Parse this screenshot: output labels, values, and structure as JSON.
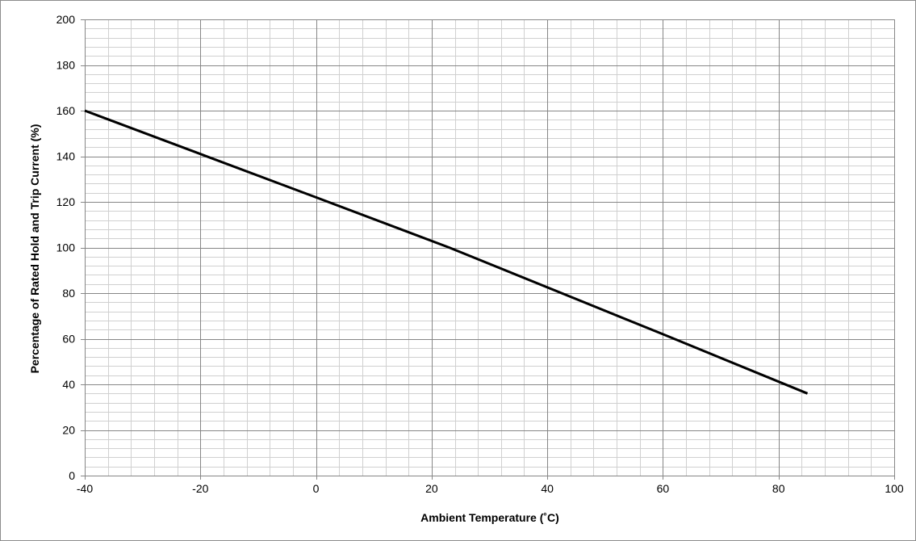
{
  "chart_data": {
    "type": "line",
    "title": "",
    "xlabel": "Ambient Temperature (˚C)",
    "ylabel": "Percentage of Rated Hold and Trip Current (%)",
    "xlim": [
      -40,
      100
    ],
    "ylim": [
      0,
      200
    ],
    "x_ticks": [
      -40,
      -20,
      0,
      20,
      40,
      60,
      80,
      100
    ],
    "y_ticks": [
      0,
      20,
      40,
      60,
      80,
      100,
      120,
      140,
      160,
      180,
      200
    ],
    "x_minor_step": 4,
    "y_minor_step": 4,
    "grid": true,
    "legend": "none",
    "series": [
      {
        "x": [
          -40,
          -20,
          0,
          23,
          60,
          85
        ],
        "y": [
          160,
          141,
          122,
          100,
          62,
          36
        ],
        "color": "#000000"
      }
    ],
    "colors": {
      "major_grid": "#868686",
      "minor_grid": "#d0d0d0",
      "frame": "#8c8c8c"
    }
  }
}
